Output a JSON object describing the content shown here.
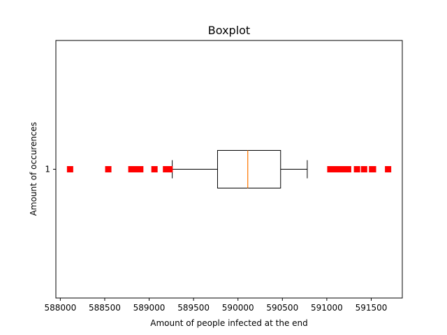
{
  "chart_data": {
    "type": "boxplot",
    "title": "Boxplot",
    "xlabel": "Amount of people infected at the end",
    "ylabel": "Amount of occurences",
    "orientation": "horizontal",
    "xlim": [
      587950,
      591850
    ],
    "x_ticks": [
      588000,
      588500,
      589000,
      589500,
      590000,
      590500,
      591000,
      591500
    ],
    "y_ticks": [
      "1"
    ],
    "boxes": [
      {
        "position": "1",
        "whisker_low": 589260,
        "q1": 589770,
        "median": 590110,
        "q3": 590480,
        "whisker_high": 590780,
        "outliers": [
          588110,
          588540,
          588800,
          588850,
          588900,
          589060,
          589190,
          589230,
          591040,
          591090,
          591130,
          591170,
          591200,
          591240,
          591340,
          591420,
          591510,
          591520,
          591690
        ]
      }
    ],
    "colors": {
      "box": "#000000",
      "median": "#ff7f0e",
      "outlier": "#ff0000"
    },
    "grid": false
  }
}
